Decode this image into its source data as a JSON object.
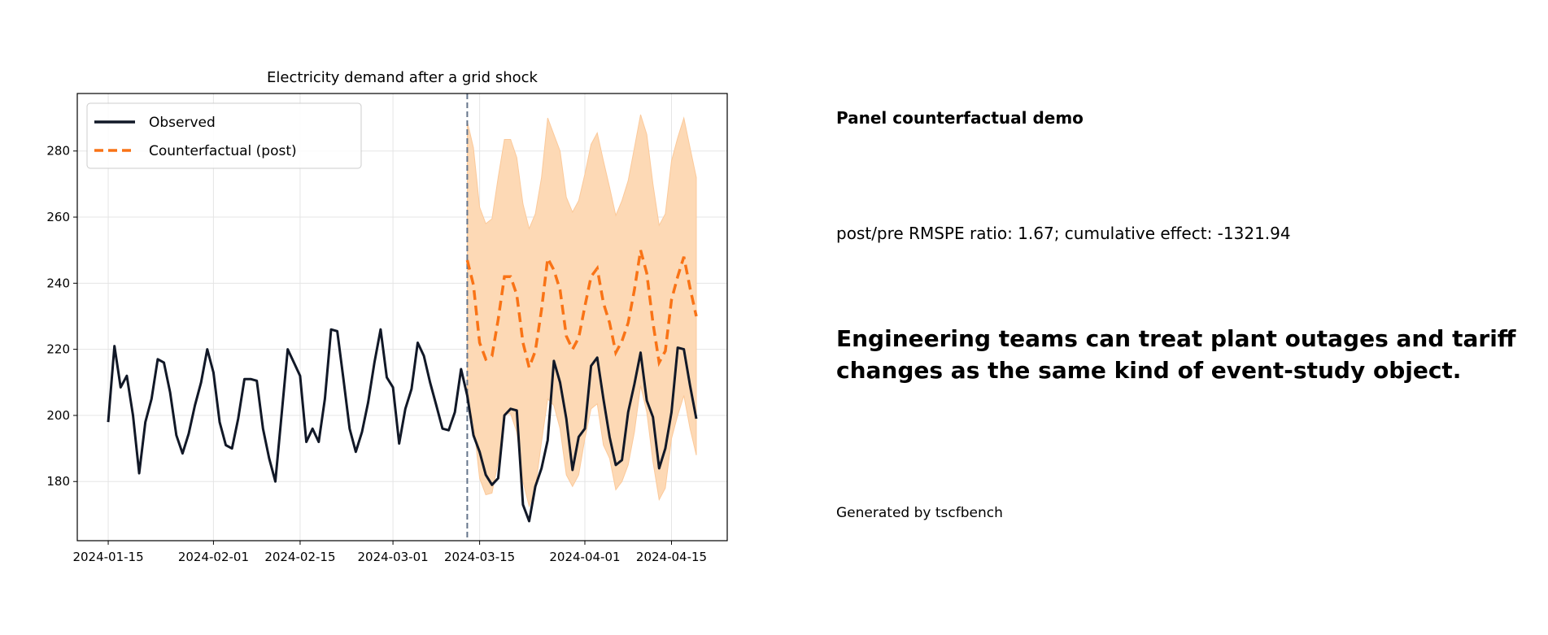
{
  "chart_data": {
    "type": "line",
    "title": "Electricity demand after a grid shock",
    "xlabel": "",
    "ylabel": "",
    "x_start": "2024-01-15",
    "x_freq": "daily",
    "xlim": [
      "2024-01-10",
      "2024-04-24"
    ],
    "ylim": [
      162.1,
      297.4
    ],
    "grid": true,
    "legend_position": "top-left",
    "x_ticks": [
      "2024-01-15",
      "2024-02-01",
      "2024-02-15",
      "2024-03-01",
      "2024-03-15",
      "2024-04-01",
      "2024-04-15"
    ],
    "y_ticks": [
      "180",
      "200",
      "220",
      "240",
      "260",
      "280"
    ],
    "intervention_date": "2024-03-13",
    "colors": {
      "observed": "#111827",
      "counterfactual": "#f97316",
      "band": "#fdd9b5",
      "intervention": "#64748b"
    },
    "series": [
      {
        "name": "Observed",
        "start": "2024-01-15",
        "values": [
          198,
          221,
          208.5,
          212,
          200,
          182.5,
          198,
          205,
          217,
          216,
          207,
          194,
          188.5,
          194.5,
          203,
          210,
          220,
          213,
          198,
          191,
          190,
          199,
          211,
          211,
          210.5,
          196,
          187,
          180,
          200,
          220,
          216,
          212,
          192,
          196,
          192,
          205,
          226,
          225.5,
          211,
          196,
          189,
          195,
          204,
          216,
          226,
          211.5,
          208.5,
          191.5,
          202,
          208,
          222,
          218,
          210,
          203,
          196,
          195.5,
          201,
          214,
          206,
          194,
          189,
          182,
          179,
          181,
          200,
          202,
          201.5,
          173,
          168,
          178.5,
          184,
          192.5,
          216.5,
          210,
          199,
          183.5,
          193.5,
          196,
          215,
          217.5,
          205,
          193.5,
          185,
          186.5,
          201,
          209.5,
          219,
          204.5,
          199.5,
          184,
          190,
          201,
          220.5,
          220,
          209,
          199
        ]
      },
      {
        "name": "Counterfactual (post)",
        "start": "2024-03-13",
        "values": [
          247,
          239.5,
          222,
          217,
          218,
          229,
          242,
          242,
          236.5,
          222,
          214.5,
          219.5,
          232,
          247.5,
          244,
          238,
          224,
          220,
          223.5,
          233,
          242,
          244.5,
          234,
          228,
          219,
          222.5,
          228,
          238,
          250,
          243,
          228,
          216,
          219.5,
          235,
          242,
          248,
          238.5,
          230
        ]
      }
    ],
    "band": {
      "start": "2024-03-13",
      "upper": [
        289,
        281,
        263,
        258,
        259.5,
        272,
        283.5,
        283.5,
        278,
        264,
        256.5,
        261,
        272,
        290,
        285,
        280,
        266,
        261.5,
        265,
        273,
        282,
        285.5,
        277,
        269,
        260.5,
        265,
        271,
        281,
        291,
        285,
        270,
        257.5,
        261,
        277,
        284,
        290,
        281,
        272
      ],
      "lower": [
        205,
        198,
        181,
        176,
        176.5,
        186,
        200.5,
        200.5,
        195,
        180,
        172.5,
        178,
        192,
        205,
        203,
        196,
        182,
        178.5,
        182,
        193,
        202,
        203.5,
        191,
        187,
        177.5,
        180,
        185,
        195,
        209,
        201,
        186,
        174.5,
        178,
        193,
        200,
        206,
        196,
        188
      ]
    }
  },
  "side_panel": {
    "heading": "Panel counterfactual demo",
    "stats": "post/pre RMSPE ratio: 1.67; cumulative effect: -1321.94",
    "takeaway": "Engineering teams can treat plant outages and tariff changes as the same kind of event-study object.",
    "footer": "Generated by tscfbench"
  }
}
